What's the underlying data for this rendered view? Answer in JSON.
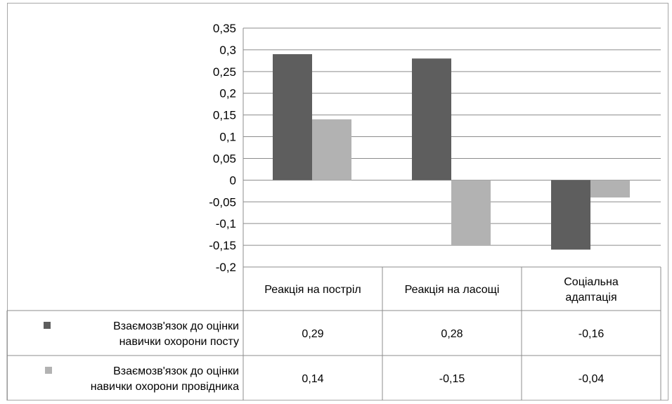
{
  "chart_data": {
    "type": "bar",
    "categories": [
      "Реакція на постріл",
      "Реакція на ласощі",
      "Соціальна адаптація"
    ],
    "series": [
      {
        "name": "Взаємозв'язок до оцінки навички охорони посту",
        "values": [
          0.29,
          0.28,
          -0.16
        ],
        "color": "#5e5e5e",
        "labels": [
          "0,29",
          "0,28",
          "-0,16"
        ]
      },
      {
        "name": "Взаємозв'язок до оцінки навички охорони провідника",
        "values": [
          0.14,
          -0.15,
          -0.04
        ],
        "color": "#b2b2b2",
        "labels": [
          "0,14",
          "-0,15",
          "-0,04"
        ]
      }
    ],
    "ylim": [
      -0.2,
      0.35
    ],
    "ytick_values": [
      0.35,
      0.3,
      0.25,
      0.2,
      0.15,
      0.1,
      0.05,
      0,
      -0.05,
      -0.1,
      -0.15,
      -0.2
    ],
    "ytick_labels": [
      "0,35",
      "0,3",
      "0,25",
      "0,2",
      "0,15",
      "0,1",
      "0,05",
      "0",
      "-0,05",
      "-0,1",
      "-0,15",
      "-0,2"
    ],
    "grid": true,
    "legend": "data-table"
  },
  "table": {
    "header": [
      "Реакція на постріл",
      "Реакція на ласощі",
      "Соціальна адаптація"
    ],
    "header_lines": [
      [
        "Реакція на постріл"
      ],
      [
        "Реакція на ласощі"
      ],
      [
        "Соціальна",
        "адаптація"
      ]
    ],
    "row_labels": [
      [
        "Взаємозв'язок до оцінки",
        "навички охорони посту"
      ],
      [
        "Взаємозв'язок до оцінки",
        "навички охорони провідника"
      ]
    ]
  }
}
